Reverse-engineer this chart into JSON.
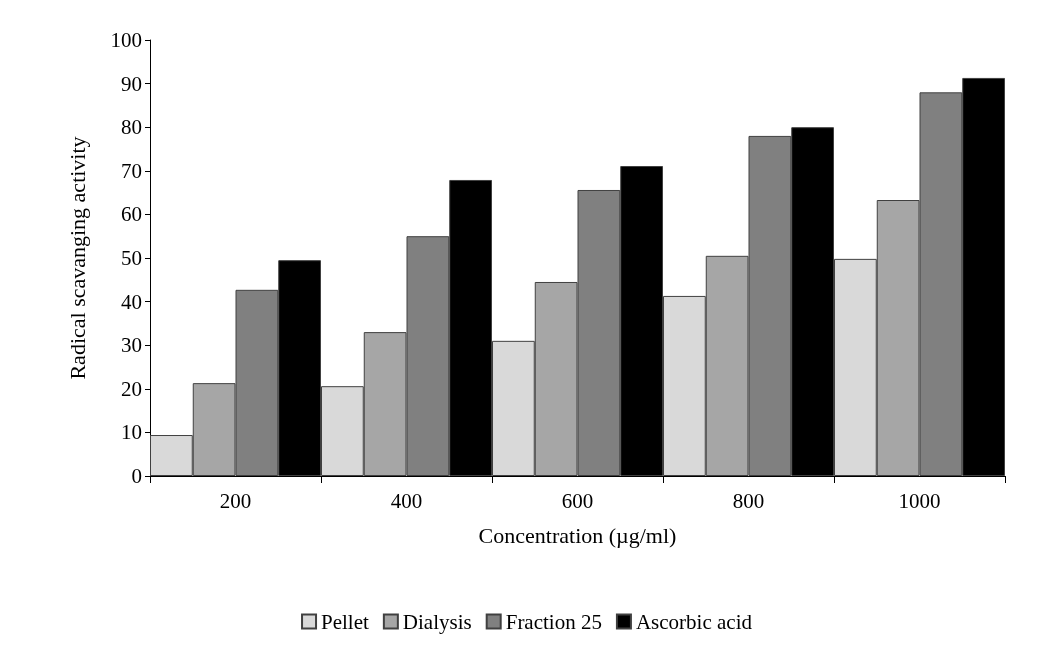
{
  "chart_data": {
    "type": "bar",
    "xlabel": "Concentration (µg/ml)",
    "ylabel": "Radical scavanging activity",
    "categories": [
      "200",
      "400",
      "600",
      "800",
      "1000"
    ],
    "series": [
      {
        "name": "Pellet",
        "color": "#d9d9d9",
        "values": [
          9.4,
          20.6,
          31,
          41.3,
          49.8
        ]
      },
      {
        "name": "Dialysis",
        "color": "#a6a6a6",
        "values": [
          21.3,
          33,
          44.5,
          50.5,
          63.3
        ]
      },
      {
        "name": "Fraction 25",
        "color": "#808080",
        "values": [
          42.7,
          55,
          65.6,
          78,
          88
        ]
      },
      {
        "name": "Ascorbic acid",
        "color": "#000000",
        "values": [
          49.5,
          67.9,
          71.1,
          80,
          91.3
        ]
      }
    ],
    "ylim": [
      0,
      100
    ],
    "yticks": [
      0,
      10,
      20,
      30,
      40,
      50,
      60,
      70,
      80,
      90,
      100
    ],
    "grid": false,
    "legend": "bottom"
  }
}
